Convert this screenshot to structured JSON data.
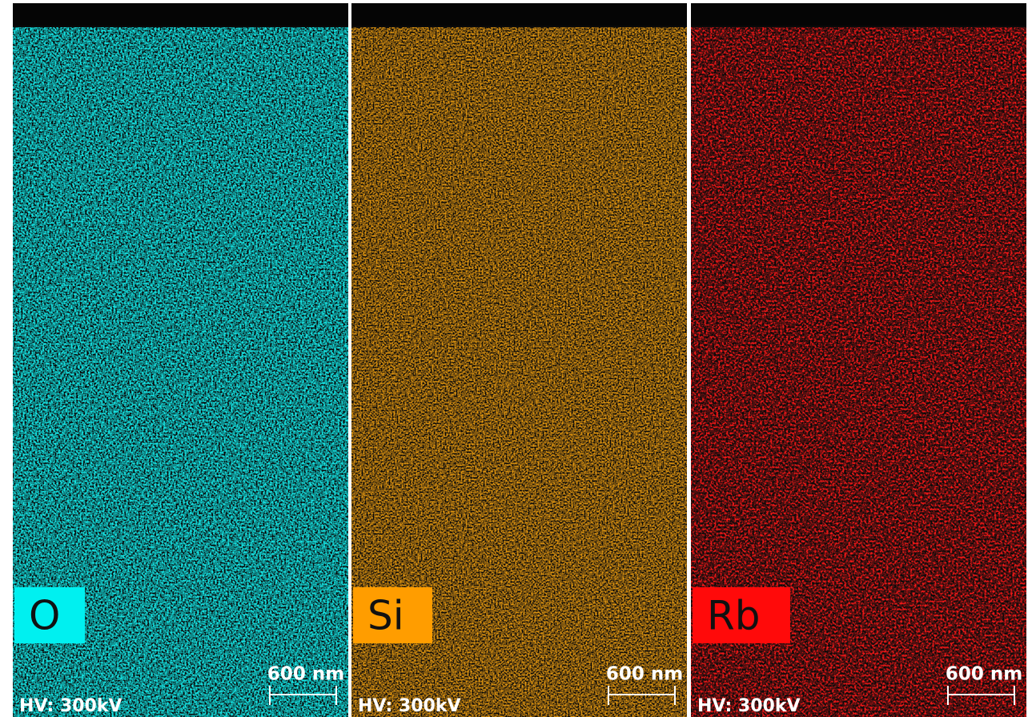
{
  "panels": [
    {
      "label": "O",
      "color": "#19e0e0",
      "label_color": "#00f0f0",
      "scale": "600 nm",
      "voltage": "HV: 300kV"
    },
    {
      "label": "Si",
      "color": "#f0a012",
      "label_color": "#ff9d00",
      "scale": "600 nm",
      "voltage": "HV: 300kV"
    },
    {
      "label": "Rb",
      "color": "#ff1a1a",
      "label_color": "#ff0a0a",
      "scale": "600 nm",
      "voltage": "HV: 300kV"
    }
  ]
}
